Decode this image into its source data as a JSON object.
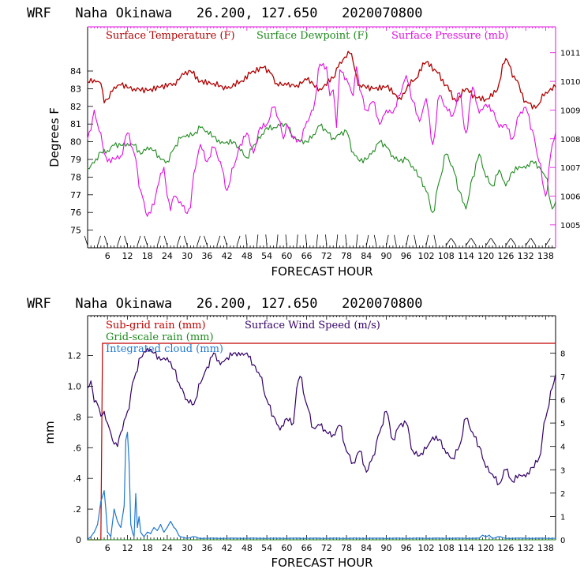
{
  "chart_data": [
    {
      "type": "line",
      "title": "WRF   Naha Okinawa   26.200, 127.650   2020070800",
      "xlabel": "FORECAST HOUR",
      "ylabel": "Degrees F",
      "xlim": [
        0,
        141
      ],
      "ylim": [
        74,
        86.5
      ],
      "y2lim": [
        1004.2,
        1011.9
      ],
      "xticks": [
        "6",
        "12",
        "18",
        "24",
        "30",
        "36",
        "42",
        "48",
        "54",
        "60",
        "66",
        "72",
        "78",
        "84",
        "90",
        "96",
        "102",
        "108",
        "114",
        "120",
        "126",
        "132",
        "138"
      ],
      "yticks": [
        "75",
        "76",
        "77",
        "78",
        "79",
        "80",
        "81",
        "82",
        "83",
        "84"
      ],
      "y2ticks": [
        "1005",
        "1006",
        "1007",
        "1008",
        "1009",
        "1010",
        "1011"
      ],
      "legend": [
        "Surface Temperature (F)",
        "Surface Dewpoint (F)",
        "Surface Pressure (mb)"
      ],
      "colors": {
        "temp": "#b00000",
        "dew": "#1f8a1f",
        "pres": "#e010e0",
        "axis": "#e010e0"
      },
      "series": [
        {
          "name": "Surface Temperature (F)",
          "axis": "left",
          "x": [
            0,
            2,
            4,
            5,
            6,
            8,
            10,
            14,
            18,
            22,
            26,
            29,
            31,
            34,
            38,
            42,
            46,
            50,
            53,
            55,
            57,
            60,
            63,
            66,
            70,
            74,
            76,
            79,
            82,
            86,
            90,
            94,
            98,
            102,
            105,
            108,
            111,
            114,
            117,
            120,
            123,
            126,
            129,
            132,
            135,
            138,
            141
          ],
          "values": [
            83.4,
            83.5,
            83.3,
            82.2,
            82.4,
            83.1,
            83.2,
            83.0,
            82.9,
            83.1,
            83.3,
            83.8,
            84.0,
            83.4,
            83.3,
            83.0,
            83.4,
            84.0,
            84.2,
            83.9,
            83.3,
            83.2,
            83.2,
            83.5,
            83.0,
            83.6,
            84.5,
            85.0,
            83.2,
            83.0,
            83.1,
            82.5,
            83.4,
            84.5,
            84.0,
            83.2,
            82.3,
            83.0,
            82.5,
            82.4,
            82.8,
            84.7,
            83.5,
            82.3,
            81.9,
            82.8,
            83.1
          ]
        },
        {
          "name": "Surface Dewpoint (F)",
          "axis": "left",
          "x": [
            0,
            2,
            4,
            6,
            8,
            10,
            12,
            14,
            16,
            18,
            20,
            22,
            24,
            26,
            28,
            30,
            32,
            34,
            36,
            38,
            40,
            42,
            44,
            46,
            48,
            50,
            52,
            54,
            56,
            58,
            60,
            62,
            64,
            66,
            68,
            70,
            72,
            74,
            76,
            78,
            80,
            82,
            84,
            86,
            88,
            90,
            92,
            94,
            96,
            98,
            100,
            102,
            104,
            106,
            108,
            110,
            112,
            114,
            116,
            118,
            120,
            122,
            124,
            126,
            128,
            130,
            132,
            134,
            136,
            138,
            140,
            141
          ],
          "values": [
            78.5,
            78.8,
            79.4,
            79.5,
            79.8,
            79.8,
            79.9,
            79.8,
            79.3,
            79.7,
            79.5,
            79.0,
            78.9,
            79.6,
            80.2,
            80.4,
            80.4,
            80.8,
            80.6,
            80.3,
            79.9,
            80.0,
            80.0,
            79.5,
            79.1,
            79.8,
            80.2,
            80.8,
            80.8,
            80.9,
            81.0,
            80.3,
            80.0,
            80.0,
            80.4,
            80.9,
            80.6,
            80.2,
            80.4,
            80.6,
            79.4,
            78.9,
            79.0,
            79.5,
            80.0,
            79.7,
            79.2,
            78.9,
            79.0,
            78.6,
            78.0,
            77.2,
            76.0,
            77.8,
            79.3,
            78.6,
            77.2,
            76.2,
            78.0,
            79.3,
            78.0,
            77.5,
            78.4,
            77.5,
            78.3,
            78.6,
            78.5,
            78.9,
            78.6,
            78.0,
            76.2,
            76.6
          ]
        },
        {
          "name": "Surface Pressure (mb)",
          "axis": "right",
          "x": [
            0,
            1,
            2,
            3,
            4,
            5,
            6,
            8,
            10,
            12,
            14,
            16,
            18,
            20,
            21,
            22,
            23,
            24,
            25,
            26,
            28,
            30,
            31,
            32,
            34,
            36,
            38,
            40,
            42,
            44,
            46,
            48,
            50,
            52,
            54,
            56,
            58,
            59,
            60,
            62,
            64,
            66,
            68,
            70,
            72,
            73,
            74,
            75,
            76,
            78,
            80,
            81,
            82,
            84,
            86,
            88,
            90,
            92,
            94,
            96,
            98,
            100,
            102,
            104,
            106,
            108,
            110,
            112,
            114,
            116,
            118,
            120,
            122,
            124,
            126,
            128,
            130,
            132,
            134,
            136,
            138,
            140,
            141
          ],
          "values": [
            1008,
            1008.3,
            1009,
            1008.5,
            1008.2,
            1007.5,
            1007.2,
            1007.3,
            1007.4,
            1008.2,
            1007.5,
            1006.2,
            1005.3,
            1005.7,
            1006.3,
            1006.8,
            1007,
            1006,
            1005.5,
            1006,
            1005.8,
            1005.4,
            1005.6,
            1006.8,
            1007.8,
            1007.2,
            1007.7,
            1007.2,
            1006.2,
            1007,
            1007.8,
            1008.2,
            1007.5,
            1008.4,
            1008.5,
            1009.1,
            1008.6,
            1008,
            1008.5,
            1008.0,
            1007.9,
            1008.6,
            1009,
            1010.6,
            1010.5,
            1009.5,
            1009.7,
            1008.4,
            1010.4,
            1010.1,
            1009.5,
            1010.5,
            1009.7,
            1009.0,
            1009.3,
            1008.5,
            1009.0,
            1008.9,
            1009.5,
            1010.2,
            1009.3,
            1008.6,
            1009.4,
            1007.8,
            1009.5,
            1009.1,
            1008.8,
            1009.6,
            1008.2,
            1009.8,
            1008.9,
            1009.2,
            1009.0,
            1008.4,
            1008.5,
            1008.0,
            1008.8,
            1009.1,
            1008.3,
            1007.2,
            1006.0,
            1007.8,
            1008.2
          ]
        }
      ],
      "wind_barbs": "wind barbs along bottom axis"
    },
    {
      "type": "line",
      "title": "WRF   Naha Okinawa   26.200, 127.650   2020070800",
      "xlabel": "FORECAST HOUR",
      "ylabel": "mm",
      "xlim": [
        0,
        141
      ],
      "ylim": [
        0,
        1.46
      ],
      "y2lim": [
        0,
        9.6
      ],
      "xticks": [
        "6",
        "12",
        "18",
        "24",
        "30",
        "36",
        "42",
        "48",
        "54",
        "60",
        "66",
        "72",
        "78",
        "84",
        "90",
        "96",
        "102",
        "108",
        "114",
        "120",
        "126",
        "132",
        "138"
      ],
      "yticks": [
        "0",
        ".2",
        ".4",
        ".6",
        ".8",
        "1.0",
        "1.2"
      ],
      "y2ticks": [
        "0",
        "1",
        "2",
        "3",
        "4",
        "5",
        "6",
        "7",
        "8"
      ],
      "legend": [
        "Sub-grid rain (mm)",
        "Surface Wind Speed (m/s)",
        "Grid-scale rain (mm)",
        "Integrated cloud (mm)"
      ],
      "colors": {
        "subgrid": "#c00000",
        "wind": "#330066",
        "grid": "#1f8a1f",
        "cloud": "#1f78d0"
      },
      "series": [
        {
          "name": "Sub-grid rain (mm)",
          "axis": "left",
          "x": [
            0,
            4,
            4.5,
            141
          ],
          "values": [
            0,
            0,
            1.28,
            1.28
          ]
        },
        {
          "name": "Surface Wind Speed (m/s)",
          "axis": "right",
          "x": [
            0,
            1,
            2,
            3,
            4,
            5,
            6,
            8,
            9,
            10,
            12,
            14,
            16,
            18,
            20,
            22,
            24,
            26,
            28,
            30,
            32,
            34,
            36,
            38,
            40,
            42,
            44,
            46,
            48,
            50,
            52,
            54,
            56,
            58,
            60,
            62,
            63,
            64,
            66,
            68,
            70,
            72,
            74,
            76,
            78,
            80,
            82,
            84,
            86,
            88,
            90,
            92,
            94,
            96,
            98,
            100,
            102,
            104,
            106,
            108,
            110,
            112,
            114,
            116,
            118,
            120,
            122,
            124,
            126,
            128,
            130,
            132,
            134,
            136,
            138,
            140,
            141
          ],
          "values": [
            6.5,
            6.8,
            5.9,
            5.8,
            5.3,
            5.5,
            5.0,
            4.1,
            4.0,
            4.6,
            5.5,
            6.9,
            7.8,
            8.2,
            8.0,
            7.7,
            7.8,
            7.3,
            6.5,
            6.0,
            5.8,
            6.7,
            7.4,
            8.0,
            7.5,
            7.8,
            8.0,
            7.9,
            8.0,
            7.5,
            7.0,
            6.0,
            5.3,
            4.7,
            5.2,
            5.0,
            6.5,
            7.0,
            5.8,
            4.8,
            4.9,
            4.6,
            4.5,
            4.9,
            3.8,
            3.3,
            3.8,
            2.9,
            3.6,
            4.6,
            5.5,
            4.3,
            4.9,
            5.0,
            3.8,
            3.6,
            3.9,
            4.4,
            4.3,
            3.7,
            3.5,
            4.0,
            5.2,
            4.6,
            4.0,
            3.1,
            2.8,
            2.4,
            3.0,
            2.5,
            2.8,
            2.7,
            3.1,
            3.5,
            5.2,
            6.5,
            7.1
          ]
        },
        {
          "name": "Integrated cloud (mm)",
          "axis": "left",
          "x": [
            0,
            1,
            2,
            3,
            4,
            5,
            5.5,
            6,
            7,
            8,
            9,
            10,
            11,
            11.5,
            12,
            12.5,
            13,
            13.5,
            14,
            14.5,
            15,
            15.5,
            16,
            17,
            18,
            19,
            20,
            21,
            22,
            23,
            24,
            25,
            26,
            28,
            30,
            32,
            34,
            40,
            50,
            60,
            70,
            80,
            90,
            100,
            110,
            118,
            119,
            120,
            121,
            122,
            124,
            126,
            130,
            135,
            141
          ],
          "values": [
            0,
            0.02,
            0.05,
            0.1,
            0.25,
            0.32,
            0.2,
            0.05,
            0.02,
            0.2,
            0.12,
            0.08,
            0.22,
            0.65,
            0.7,
            0.5,
            0.1,
            0.05,
            0.02,
            0.3,
            0.08,
            0.15,
            0.05,
            0.02,
            0.05,
            0.04,
            0.08,
            0.06,
            0.1,
            0.05,
            0.08,
            0.12,
            0.08,
            0.02,
            0.01,
            0.02,
            0.01,
            0.01,
            0.01,
            0.01,
            0.01,
            0.01,
            0.01,
            0.01,
            0.01,
            0.01,
            0.03,
            0.02,
            0.03,
            0.01,
            0.02,
            0.01,
            0.01,
            0.01,
            0.01
          ]
        },
        {
          "name": "Grid-scale rain (mm)",
          "axis": "left",
          "x": [
            0,
            141
          ],
          "values": [
            0,
            0
          ]
        }
      ]
    }
  ]
}
